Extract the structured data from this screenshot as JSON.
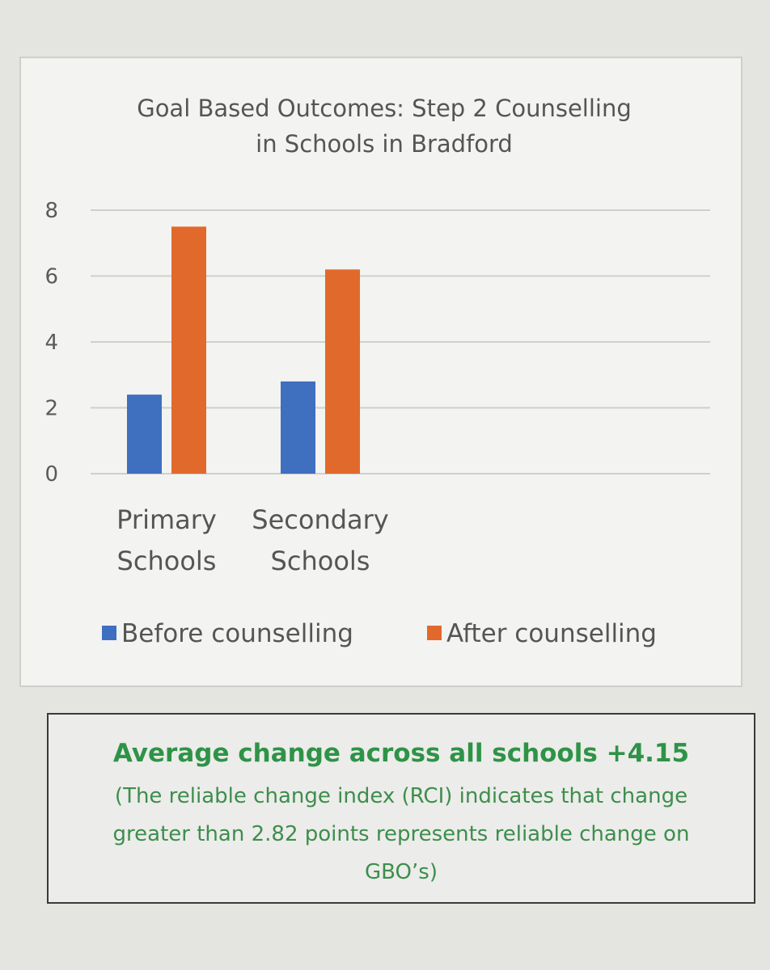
{
  "chart_data": {
    "type": "bar",
    "title_lines": [
      "Goal Based Outcomes: Step 2 Counselling",
      "in Schools in Bradford"
    ],
    "categories": [
      [
        "Primary",
        "Schools"
      ],
      [
        "Secondary",
        "Schools"
      ]
    ],
    "series": [
      {
        "name": "Before counselling",
        "values": [
          2.4,
          2.8
        ],
        "color": "#3f6fbf"
      },
      {
        "name": "After counselling",
        "values": [
          7.5,
          6.2
        ],
        "color": "#e2692c"
      }
    ],
    "ylim": [
      0,
      8
    ],
    "yticks": [
      "0",
      "2",
      "4",
      "6",
      "8"
    ],
    "grid": true,
    "legend_position": "bottom"
  },
  "note": {
    "headline": "Average change across all schools +4.15",
    "body_lines": [
      "(The reliable change index (RCI) indicates that change",
      "greater than 2.82 points represents reliable change on",
      "GBO’s)"
    ]
  }
}
